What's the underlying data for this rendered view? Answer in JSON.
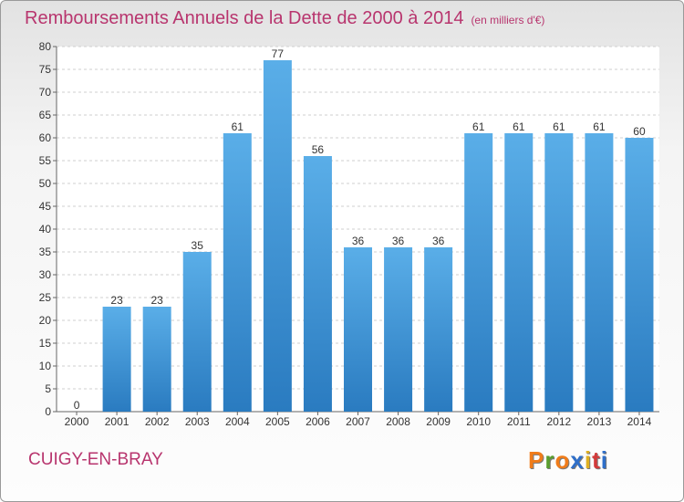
{
  "header": {
    "title": "Remboursements Annuels de la Dette de 2000 à 2014",
    "subtitle": "(en milliers d'€)"
  },
  "footer": {
    "city": "CUIGY-EN-BRAY",
    "logo": "Proxiti"
  },
  "colors": {
    "title": "#b8356e",
    "bar_top": "#5aaee8",
    "bar_bottom": "#2a7bc0",
    "logo_letters": [
      "#f07c1a",
      "#5a9e2e",
      "#f07c1a",
      "#2f6fc9",
      "#e0b020",
      "#d33a3a",
      "#2f6fc9"
    ]
  },
  "chart_data": {
    "type": "bar",
    "title": "Remboursements Annuels de la Dette de 2000 à 2014",
    "subtitle": "(en milliers d'€)",
    "xlabel": "",
    "ylabel": "",
    "categories": [
      "2000",
      "2001",
      "2002",
      "2003",
      "2004",
      "2005",
      "2006",
      "2007",
      "2008",
      "2009",
      "2010",
      "2011",
      "2012",
      "2013",
      "2014"
    ],
    "values": [
      0,
      23,
      23,
      35,
      61,
      77,
      56,
      36,
      36,
      36,
      61,
      61,
      61,
      61,
      60
    ],
    "ylim": [
      0,
      80
    ],
    "yticks": [
      0,
      5,
      10,
      15,
      20,
      25,
      30,
      35,
      40,
      45,
      50,
      55,
      60,
      65,
      70,
      75,
      80
    ],
    "grid": true,
    "data_labels": true
  }
}
